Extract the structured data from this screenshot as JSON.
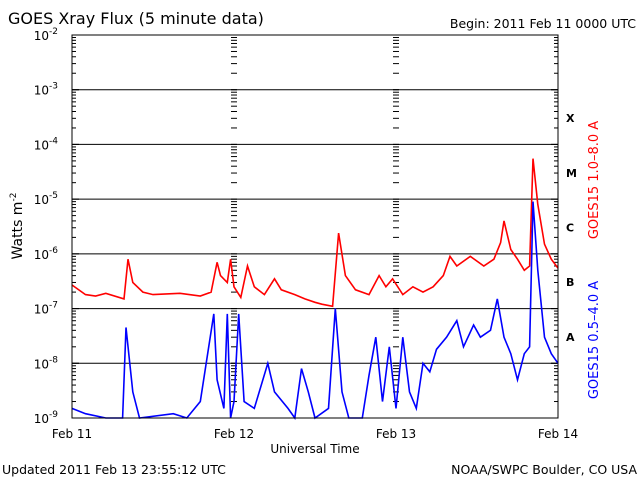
{
  "chart_data": {
    "type": "line",
    "title": "GOES Xray Flux (5 minute data)",
    "begin_label": "Begin:  2011 Feb 11 0000 UTC",
    "xlabel": "Universal Time",
    "ylabel": "Watts m",
    "ylabel_sup": "-2",
    "y_scale": "log",
    "ylim": [
      1e-09,
      0.01
    ],
    "y_ticks": [
      {
        "base": "10",
        "exp": "-2"
      },
      {
        "base": "10",
        "exp": "-3"
      },
      {
        "base": "10",
        "exp": "-4"
      },
      {
        "base": "10",
        "exp": "-5"
      },
      {
        "base": "10",
        "exp": "-6"
      },
      {
        "base": "10",
        "exp": "-7"
      },
      {
        "base": "10",
        "exp": "-8"
      },
      {
        "base": "10",
        "exp": "-9"
      }
    ],
    "x_unit": "hours since Feb 11 0000 UTC",
    "xlim": [
      0,
      72
    ],
    "x_ticks": [
      {
        "label": "Feb 11",
        "hour": 0
      },
      {
        "label": "Feb 12",
        "hour": 24
      },
      {
        "label": "Feb 13",
        "hour": 48
      },
      {
        "label": "Feb 14",
        "hour": 72
      }
    ],
    "flare_classes": [
      "X",
      "M",
      "C",
      "B",
      "A"
    ],
    "grid": true,
    "series": [
      {
        "name": "GOES15 1.0–8.0 A",
        "color": "#ff0000",
        "points": [
          [
            0,
            2.7e-07
          ],
          [
            2,
            1.8e-07
          ],
          [
            3.5,
            1.7e-07
          ],
          [
            5,
            1.9e-07
          ],
          [
            7.7,
            1.5e-07
          ],
          [
            8.3,
            8e-07
          ],
          [
            9,
            3e-07
          ],
          [
            10.5,
            2e-07
          ],
          [
            12,
            1.8e-07
          ],
          [
            16,
            1.9e-07
          ],
          [
            19,
            1.7e-07
          ],
          [
            20.6,
            2e-07
          ],
          [
            21.5,
            7e-07
          ],
          [
            22,
            4e-07
          ],
          [
            23,
            3e-07
          ],
          [
            23.5,
            8e-07
          ],
          [
            24,
            2.5e-07
          ],
          [
            25,
            1.6e-07
          ],
          [
            26,
            6e-07
          ],
          [
            27,
            2.5e-07
          ],
          [
            28.5,
            1.8e-07
          ],
          [
            30,
            3.5e-07
          ],
          [
            31,
            2.2e-07
          ],
          [
            33,
            1.8e-07
          ],
          [
            34.5,
            1.5e-07
          ],
          [
            36,
            1.3e-07
          ],
          [
            37,
            1.2e-07
          ],
          [
            38.6,
            1.1e-07
          ],
          [
            39.5,
            2.4e-06
          ],
          [
            40.5,
            4e-07
          ],
          [
            42,
            2.2e-07
          ],
          [
            44,
            1.8e-07
          ],
          [
            45.5,
            4e-07
          ],
          [
            46.5,
            2.5e-07
          ],
          [
            47.5,
            3.5e-07
          ],
          [
            49,
            1.8e-07
          ],
          [
            50.5,
            2.5e-07
          ],
          [
            52,
            2e-07
          ],
          [
            53.5,
            2.5e-07
          ],
          [
            55,
            4e-07
          ],
          [
            56,
            9e-07
          ],
          [
            57,
            6e-07
          ],
          [
            59,
            9e-07
          ],
          [
            61,
            6e-07
          ],
          [
            62.5,
            8e-07
          ],
          [
            63.5,
            1.6e-06
          ],
          [
            64,
            4e-06
          ],
          [
            65,
            1.2e-06
          ],
          [
            66,
            8e-07
          ],
          [
            67,
            5e-07
          ],
          [
            67.8,
            6e-07
          ],
          [
            68.3,
            5.5e-05
          ],
          [
            69,
            8e-06
          ],
          [
            70,
            1.5e-06
          ],
          [
            71,
            8e-07
          ],
          [
            72,
            5.5e-07
          ]
        ]
      },
      {
        "name": "GOES15 0.5–4.0 A",
        "color": "#0000ff",
        "points": [
          [
            0,
            1.5e-09
          ],
          [
            2,
            1.2e-09
          ],
          [
            5,
            1e-09
          ],
          [
            7.5,
            1e-09
          ],
          [
            8,
            4.5e-08
          ],
          [
            9,
            3e-09
          ],
          [
            10,
            1e-09
          ],
          [
            15,
            1.2e-09
          ],
          [
            17,
            1e-09
          ],
          [
            19,
            2e-09
          ],
          [
            21,
            8e-08
          ],
          [
            21.5,
            5e-09
          ],
          [
            22.5,
            1.5e-09
          ],
          [
            23,
            8e-08
          ],
          [
            23.5,
            1e-09
          ],
          [
            24,
            2e-09
          ],
          [
            24.7,
            8e-08
          ],
          [
            25.5,
            2e-09
          ],
          [
            27,
            1.5e-09
          ],
          [
            29,
            1e-08
          ],
          [
            30,
            3e-09
          ],
          [
            32,
            1.5e-09
          ],
          [
            33,
            1e-09
          ],
          [
            34,
            8e-09
          ],
          [
            35,
            3e-09
          ],
          [
            36,
            1e-09
          ],
          [
            38,
            1.5e-09
          ],
          [
            39,
            1e-07
          ],
          [
            40,
            3e-09
          ],
          [
            41,
            1e-09
          ],
          [
            43,
            1e-09
          ],
          [
            44,
            6e-09
          ],
          [
            45,
            3e-08
          ],
          [
            46,
            2e-09
          ],
          [
            47,
            2e-08
          ],
          [
            48,
            1.5e-09
          ],
          [
            49,
            3e-08
          ],
          [
            50,
            3e-09
          ],
          [
            51,
            1.5e-09
          ],
          [
            52,
            1e-08
          ],
          [
            53,
            7e-09
          ],
          [
            54,
            1.8e-08
          ],
          [
            55.5,
            3e-08
          ],
          [
            57,
            6e-08
          ],
          [
            58,
            2e-08
          ],
          [
            59.5,
            5e-08
          ],
          [
            60.5,
            3e-08
          ],
          [
            62,
            4e-08
          ],
          [
            63,
            1.5e-07
          ],
          [
            64,
            3e-08
          ],
          [
            65,
            1.5e-08
          ],
          [
            66,
            5e-09
          ],
          [
            67,
            1.5e-08
          ],
          [
            67.8,
            2e-08
          ],
          [
            68.3,
            9e-06
          ],
          [
            69,
            5e-07
          ],
          [
            70,
            3e-08
          ],
          [
            71,
            1.5e-08
          ],
          [
            72,
            1e-08
          ]
        ]
      }
    ]
  },
  "footer": {
    "updated": "Updated 2011 Feb 13 23:55:12 UTC",
    "credit": "NOAA/SWPC Boulder, CO USA"
  }
}
